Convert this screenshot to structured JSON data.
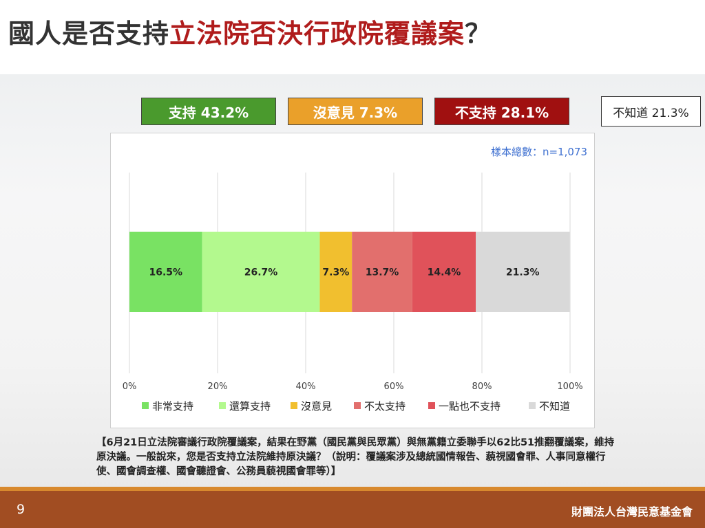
{
  "title": {
    "part1": "國人是否支持",
    "part2": "立法院否決行政院覆議案",
    "part3": "？"
  },
  "summary": {
    "support": "支持 43.2%",
    "neutral": "沒意見 7.3%",
    "oppose": "不支持 28.1%",
    "dont_know": "不知道 21.3%"
  },
  "sample_size": "樣本總數：n=1,073",
  "chart_data": {
    "type": "bar",
    "orientation": "horizontal",
    "stacked": true,
    "x_ticks": [
      "0%",
      "20%",
      "40%",
      "60%",
      "80%",
      "100%"
    ],
    "xlim": [
      0,
      100
    ],
    "grid": true,
    "legend_position": "bottom",
    "series": [
      {
        "name": "非常支持",
        "value": 16.5,
        "label": "16.5%",
        "color": "#79e263"
      },
      {
        "name": "還算支持",
        "value": 26.7,
        "label": "26.7%",
        "color": "#b3f98e"
      },
      {
        "name": "沒意見",
        "value": 7.3,
        "label": "7.3%",
        "color": "#f1bf2f"
      },
      {
        "name": "不太支持",
        "value": 13.7,
        "label": "13.7%",
        "color": "#e26f6d"
      },
      {
        "name": "一點也不支持",
        "value": 14.4,
        "label": "14.4%",
        "color": "#e0525a"
      },
      {
        "name": "不知道",
        "value": 21.3,
        "label": "21.3%",
        "color": "#d9d9d9"
      }
    ]
  },
  "note": "【6月21日立法院審議行政院覆議案，結果在野黨（國民黨與民眾黨）與無黨籍立委聯手以62比51推翻覆議案，維持原決議。一般說來，您是否支持立法院維持原決議？（說明：覆議案涉及總統國情報告、藐視國會罪、人事同意權行使、國會調查權、國會聽證會、公務員藐視國會罪等）】",
  "footer": {
    "page_number": "9",
    "organization": "財團法人台灣民意基金會"
  }
}
